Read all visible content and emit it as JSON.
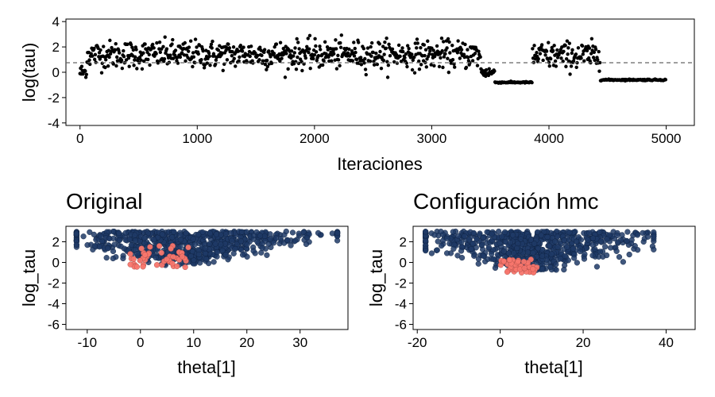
{
  "chart_data": [
    {
      "type": "scatter",
      "title": "",
      "xlabel": "Iteraciones",
      "ylabel": "log(tau)",
      "xlim": [
        -120,
        5240
      ],
      "ylim": [
        -4.2,
        4.2
      ],
      "x_ticks": [
        0,
        1000,
        2000,
        3000,
        4000,
        5000
      ],
      "y_ticks": [
        -4,
        -2,
        0,
        2,
        4
      ],
      "grid": false,
      "reference_line": {
        "y": 0.75,
        "style": "dashed"
      },
      "colors": {
        "points": "#000000",
        "reference_line": "#666666"
      },
      "segments": [
        {
          "from": 0,
          "to": 60,
          "level": 0.0,
          "spread": 0.6,
          "note": "burn-in dip"
        },
        {
          "from": 60,
          "to": 3420,
          "level": 1.4,
          "spread": 1.0
        },
        {
          "from": 3420,
          "to": 3540,
          "level": 0.0,
          "spread": 0.4
        },
        {
          "from": 3540,
          "to": 3860,
          "level": -0.8,
          "spread": 0.05
        },
        {
          "from": 3860,
          "to": 4440,
          "level": 1.3,
          "spread": 1.0
        },
        {
          "from": 4440,
          "to": 5000,
          "level": -0.6,
          "spread": 0.05
        }
      ]
    },
    {
      "type": "scatter",
      "title": "Original",
      "xlabel": "theta[1]",
      "ylabel": "log_tau",
      "xlim": [
        -14,
        39
      ],
      "ylim": [
        -6.5,
        3.5
      ],
      "x_ticks": [
        -10,
        0,
        10,
        20,
        30
      ],
      "y_ticks": [
        -6,
        -4,
        -2,
        0,
        2
      ],
      "grid": false,
      "series": [
        {
          "name": "",
          "color": "#1f3a66",
          "x_range": [
            -12,
            37
          ],
          "y_range": [
            -0.3,
            3.0
          ]
        },
        {
          "name": "",
          "color": "#f8766d",
          "x_range": [
            -2,
            9
          ],
          "y_range": [
            -0.7,
            1.6
          ]
        }
      ]
    },
    {
      "type": "scatter",
      "title": "Configuración hmc",
      "xlabel": "theta[1]",
      "ylabel": "log_tau",
      "xlim": [
        -21,
        47
      ],
      "ylim": [
        -6.5,
        3.5
      ],
      "x_ticks": [
        -20,
        0,
        20,
        40
      ],
      "y_ticks": [
        -6,
        -4,
        -2,
        0,
        2
      ],
      "grid": false,
      "series": [
        {
          "name": "",
          "color": "#1f3a66",
          "x_range": [
            -18,
            37
          ],
          "y_range": [
            -0.9,
            3.0
          ]
        },
        {
          "name": "",
          "color": "#f8766d",
          "x_range": [
            0,
            9
          ],
          "y_range": [
            -1.0,
            0.3
          ]
        }
      ]
    }
  ]
}
